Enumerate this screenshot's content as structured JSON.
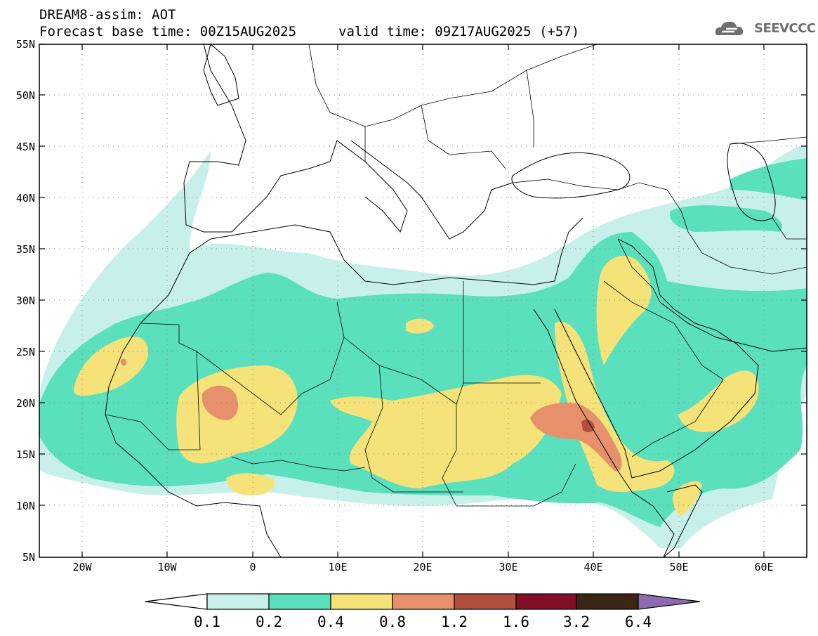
{
  "header": {
    "title_line1": "DREAM8-assim: AOT",
    "title_line2": "Forecast base time: 00Z15AUG2025",
    "valid_time": "valid time: 09Z17AUG2025 (+57)",
    "logo_text": "SEEVCCC"
  },
  "axes": {
    "y_ticks": [
      "55N",
      "50N",
      "45N",
      "40N",
      "35N",
      "30N",
      "25N",
      "20N",
      "15N",
      "10N",
      "5N"
    ],
    "x_ticks": [
      "20W",
      "10W",
      "0",
      "10E",
      "20E",
      "30E",
      "40E",
      "50E",
      "60E"
    ]
  },
  "colorbar": {
    "labels": [
      "0.1",
      "0.2",
      "0.4",
      "0.8",
      "1.2",
      "1.6",
      "3.2",
      "6.4"
    ],
    "colors": [
      "#ffffff",
      "#c7f0ea",
      "#5ae0bd",
      "#f5e37a",
      "#e7916c",
      "#b04f3c",
      "#820f25",
      "#3b2514",
      "#8e6bb0"
    ]
  },
  "map_colors": {
    "c01": "#c7f0ea",
    "c02": "#5ae0bd",
    "c04": "#f5e37a",
    "c08": "#e7916c",
    "c12": "#b04f3c"
  }
}
